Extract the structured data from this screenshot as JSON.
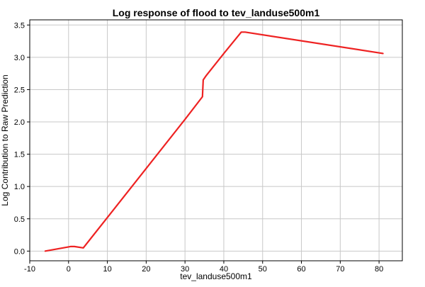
{
  "chart_data": {
    "type": "line",
    "title": "Log response of flood to tev_landuse500m1",
    "xlabel": "tev_landuse500m1",
    "ylabel": "Log Contribution to Raw Prediction",
    "xlim": [
      -10,
      86
    ],
    "ylim": [
      -0.15,
      3.58
    ],
    "xticks": [
      -10,
      0,
      10,
      20,
      30,
      40,
      50,
      60,
      70,
      80
    ],
    "yticks": [
      0.0,
      0.5,
      1.0,
      1.5,
      2.0,
      2.5,
      3.0,
      3.5
    ],
    "xtick_labels": [
      "-10",
      "0",
      "10",
      "20",
      "30",
      "40",
      "50",
      "60",
      "70",
      "80"
    ],
    "ytick_labels": [
      "0.0",
      "0.5",
      "1.0",
      "1.5",
      "2.0",
      "2.5",
      "3.0",
      "3.5"
    ],
    "grid": true,
    "series": [
      {
        "color": "#ee2222",
        "x": [
          -6,
          0.5,
          1.5,
          3.8,
          10,
          20,
          30,
          34.5,
          34.7,
          35.5,
          40,
          44.5,
          45.5,
          81
        ],
        "y": [
          0.0,
          0.07,
          0.07,
          0.05,
          0.52,
          1.28,
          2.04,
          2.39,
          2.65,
          2.72,
          3.06,
          3.39,
          3.39,
          3.06
        ]
      }
    ]
  }
}
